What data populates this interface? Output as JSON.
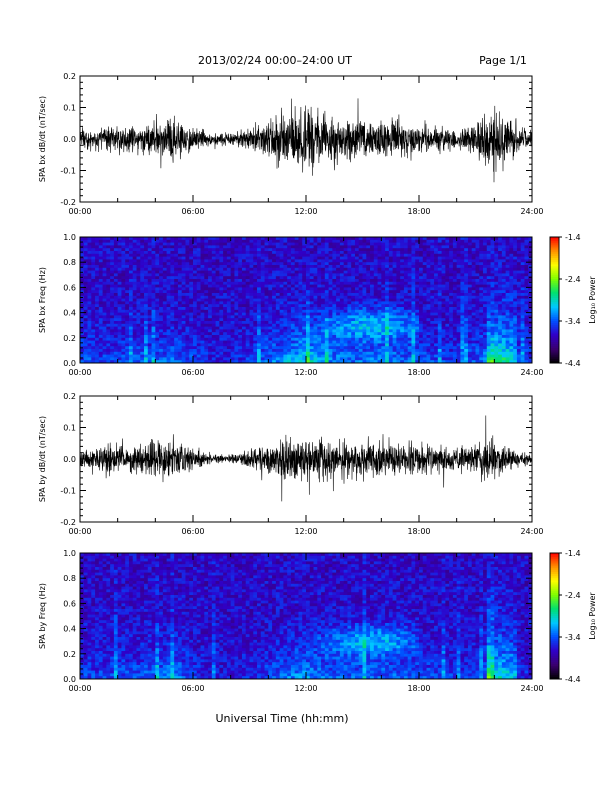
{
  "header": {
    "title": "2013/02/24  00:00–24:00 UT",
    "page": "Page 1/1"
  },
  "xaxis": {
    "label": "Universal Time (hh:mm)",
    "ticks": [
      "00:00",
      "06:00",
      "12:00",
      "18:00",
      "24:00"
    ],
    "range_hours": [
      0,
      24
    ]
  },
  "colorbar": {
    "label": "Log₁₀ Power",
    "ticks": [
      "-1.4",
      "-2.4",
      "-3.4",
      "-4.4"
    ],
    "range": [
      -4.4,
      -1.4
    ],
    "colors": [
      "#000000",
      "#3a0070",
      "#3000c8",
      "#0050ff",
      "#00c8ff",
      "#00e070",
      "#80ff00",
      "#ffff00",
      "#ff9000",
      "#ff0000"
    ]
  },
  "chart_data": [
    {
      "type": "line",
      "ylabel": "SPA bx dB/dt (nT/sec)",
      "ylim": [
        -0.2,
        0.2
      ],
      "yticks": [
        "0.2",
        "0.1",
        "0.0",
        "-0.1",
        "-0.2"
      ],
      "envelope": {
        "hours": [
          0,
          1,
          2,
          3,
          4,
          5,
          6,
          7,
          8,
          9,
          10,
          11,
          12,
          13,
          14,
          15,
          16,
          17,
          18,
          19,
          20,
          21,
          22,
          23,
          24
        ],
        "amplitude": [
          0.07,
          0.06,
          0.06,
          0.07,
          0.08,
          0.09,
          0.06,
          0.03,
          0.03,
          0.05,
          0.09,
          0.13,
          0.18,
          0.12,
          0.1,
          0.09,
          0.1,
          0.09,
          0.08,
          0.06,
          0.05,
          0.07,
          0.16,
          0.08,
          0.05
        ]
      }
    },
    {
      "type": "heatmap",
      "ylabel": "SPA bx Freq (Hz)",
      "ylim": [
        0,
        1.0
      ],
      "yticks": [
        "1.0",
        "0.8",
        "0.6",
        "0.4",
        "0.2",
        "0.0"
      ],
      "colorbar_label": "Log₁₀ Power",
      "zlim": [
        -4.4,
        -1.4
      ]
    },
    {
      "type": "line",
      "ylabel": "SPA by dB/dt (nT/sec)",
      "ylim": [
        -0.2,
        0.2
      ],
      "yticks": [
        "0.2",
        "0.1",
        "0.0",
        "-0.1",
        "-0.2"
      ],
      "envelope": {
        "hours": [
          0,
          1,
          2,
          3,
          4,
          5,
          6,
          7,
          8,
          9,
          10,
          11,
          12,
          13,
          14,
          15,
          16,
          17,
          18,
          19,
          20,
          21,
          22,
          23,
          24
        ],
        "amplitude": [
          0.05,
          0.06,
          0.07,
          0.07,
          0.09,
          0.11,
          0.05,
          0.02,
          0.02,
          0.04,
          0.07,
          0.1,
          0.12,
          0.09,
          0.08,
          0.08,
          0.08,
          0.08,
          0.08,
          0.06,
          0.05,
          0.06,
          0.1,
          0.05,
          0.03
        ]
      }
    },
    {
      "type": "heatmap",
      "ylabel": "SPA by Freq (Hz)",
      "ylim": [
        0,
        1.0
      ],
      "yticks": [
        "1.0",
        "0.8",
        "0.6",
        "0.4",
        "0.2",
        "0.0"
      ],
      "colorbar_label": "Log₁₀ Power",
      "zlim": [
        -4.4,
        -1.4
      ]
    }
  ]
}
